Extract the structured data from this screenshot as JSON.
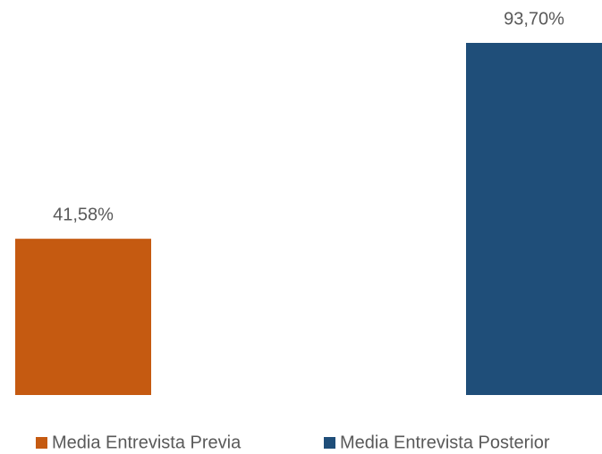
{
  "chart_data": {
    "type": "bar",
    "categories": [
      null
    ],
    "series": [
      {
        "name": "Media Entrevista Previa",
        "color": "#c55a11",
        "values": [
          41.58
        ],
        "value_labels": [
          "41,58%"
        ]
      },
      {
        "name": "Media Entrevista Posterior",
        "color": "#1f4e79",
        "values": [
          93.7
        ],
        "value_labels": [
          "93,70%"
        ]
      }
    ],
    "ylim": [
      0,
      100
    ],
    "legend": "bottom"
  }
}
